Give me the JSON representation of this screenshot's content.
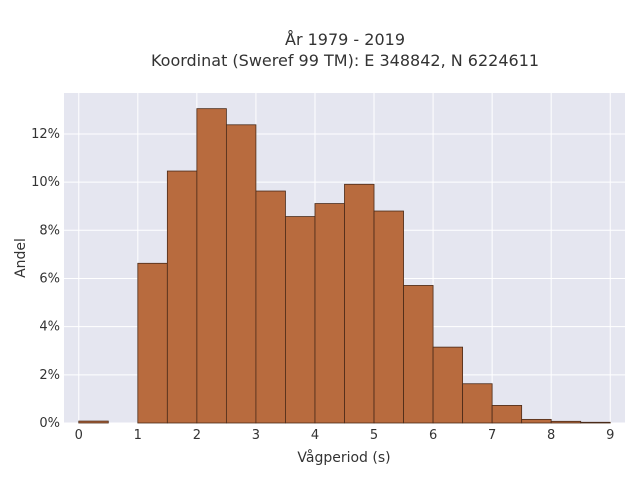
{
  "chart_data": {
    "type": "bar",
    "title_line1": "År 1979 - 2019",
    "title_line2": "Koordinat (Sweref 99 TM): E 348842, N 6224611",
    "xlabel": "Vågperiod (s)",
    "ylabel": "Andel",
    "xlim": [
      -0.25,
      9.25
    ],
    "ylim": [
      0,
      0.137
    ],
    "x_ticks": [
      0,
      1,
      2,
      3,
      4,
      5,
      6,
      7,
      8,
      9
    ],
    "y_ticks": [
      0,
      0.02,
      0.04,
      0.06,
      0.08,
      0.1,
      0.12
    ],
    "y_tick_labels": [
      "0%",
      "2%",
      "4%",
      "6%",
      "8%",
      "10%",
      "12%"
    ],
    "bin_width": 0.5,
    "bins": [
      {
        "start": 0.0,
        "value": 0.0008
      },
      {
        "start": 0.5,
        "value": 0.0
      },
      {
        "start": 1.0,
        "value": 0.0663
      },
      {
        "start": 1.5,
        "value": 0.1046
      },
      {
        "start": 2.0,
        "value": 0.1305
      },
      {
        "start": 2.5,
        "value": 0.1238
      },
      {
        "start": 3.0,
        "value": 0.0963
      },
      {
        "start": 3.5,
        "value": 0.0857
      },
      {
        "start": 4.0,
        "value": 0.0911
      },
      {
        "start": 4.5,
        "value": 0.0991
      },
      {
        "start": 5.0,
        "value": 0.088
      },
      {
        "start": 5.5,
        "value": 0.0571
      },
      {
        "start": 6.0,
        "value": 0.0315
      },
      {
        "start": 6.5,
        "value": 0.0163
      },
      {
        "start": 7.0,
        "value": 0.0073
      },
      {
        "start": 7.5,
        "value": 0.0015
      },
      {
        "start": 8.0,
        "value": 0.0007
      },
      {
        "start": 8.5,
        "value": 0.0003
      }
    ],
    "grid": true,
    "colors": {
      "bar_fill": "#b86b3e",
      "bar_stroke": "#4a2a18",
      "plot_background": "#e5e6f0",
      "grid": "#ffffff"
    }
  }
}
